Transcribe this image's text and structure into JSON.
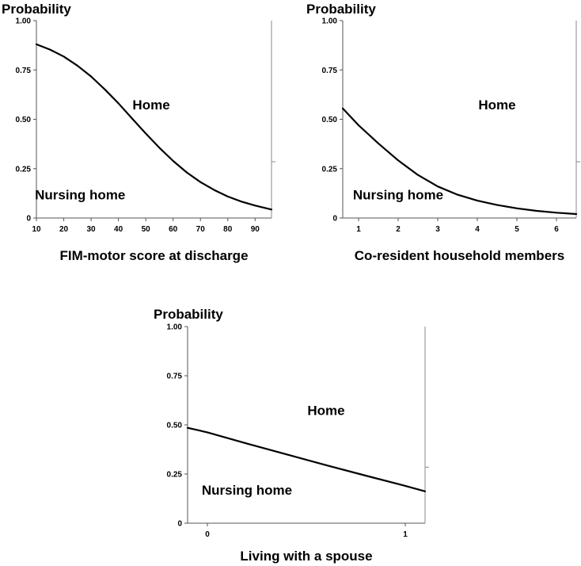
{
  "chart_data": [
    {
      "type": "line",
      "top_label": "Probability",
      "xlabel": "FIM-motor score at discharge",
      "xlim": [
        10,
        96
      ],
      "ylim": [
        0,
        1
      ],
      "x_ticks": [
        10,
        20,
        30,
        40,
        50,
        60,
        70,
        80,
        90
      ],
      "x_tick_labels": [
        "10",
        "20",
        "30",
        "40",
        "50",
        "60",
        "70",
        "80",
        "90"
      ],
      "y_ticks": [
        0,
        0.25,
        0.5,
        0.75,
        1.0
      ],
      "y_tick_labels": [
        "0",
        "0.25",
        "0.50",
        "0.75",
        "1.00"
      ],
      "right_axis_tick": 0.285,
      "region_labels": [
        {
          "text": "Home",
          "x": 52,
          "y": 0.55
        },
        {
          "text": "Nursing home",
          "x": 26,
          "y": 0.095
        }
      ],
      "series": [
        {
          "name": "Probability of nursing home",
          "x": [
            10,
            15,
            20,
            25,
            30,
            35,
            40,
            45,
            50,
            55,
            60,
            65,
            70,
            75,
            80,
            85,
            90,
            96
          ],
          "y": [
            0.88,
            0.853,
            0.818,
            0.772,
            0.717,
            0.652,
            0.581,
            0.504,
            0.428,
            0.356,
            0.289,
            0.231,
            0.182,
            0.142,
            0.109,
            0.083,
            0.063,
            0.043
          ]
        }
      ]
    },
    {
      "type": "line",
      "top_label": "Probability",
      "xlabel": "Co-resident household members",
      "xlim": [
        0.6,
        6.5
      ],
      "ylim": [
        0,
        1
      ],
      "x_ticks": [
        1,
        2,
        3,
        4,
        5,
        6
      ],
      "x_tick_labels": [
        "1",
        "2",
        "3",
        "4",
        "5",
        "6"
      ],
      "y_ticks": [
        0,
        0.25,
        0.5,
        0.75,
        1.0
      ],
      "y_tick_labels": [
        "0",
        "0.25",
        "0.50",
        "0.75",
        "1.00"
      ],
      "right_axis_tick": 0.285,
      "region_labels": [
        {
          "text": "Home",
          "x": 4.5,
          "y": 0.55
        },
        {
          "text": "Nursing home",
          "x": 2.0,
          "y": 0.095
        }
      ],
      "series": [
        {
          "name": "Probability of nursing home",
          "x": [
            0.6,
            1.0,
            1.5,
            2.0,
            2.5,
            3.0,
            3.5,
            4.0,
            4.5,
            5.0,
            5.5,
            6.0,
            6.5
          ],
          "y": [
            0.555,
            0.47,
            0.378,
            0.292,
            0.218,
            0.16,
            0.118,
            0.088,
            0.066,
            0.049,
            0.036,
            0.027,
            0.02
          ]
        }
      ]
    },
    {
      "type": "line",
      "top_label": "Probability",
      "xlabel": "Living with a spouse",
      "xlim": [
        -0.1,
        1.1
      ],
      "ylim": [
        0,
        1
      ],
      "x_ticks": [
        0,
        1
      ],
      "x_tick_labels": [
        "0",
        "1"
      ],
      "y_ticks": [
        0,
        0.25,
        0.5,
        0.75,
        1.0
      ],
      "y_tick_labels": [
        "0",
        "0.25",
        "0.50",
        "0.75",
        "1.00"
      ],
      "right_axis_tick": 0.285,
      "region_labels": [
        {
          "text": "Home",
          "x": 0.6,
          "y": 0.55
        },
        {
          "text": "Nursing home",
          "x": 0.2,
          "y": 0.145
        }
      ],
      "series": [
        {
          "name": "Probability of nursing home",
          "x": [
            -0.1,
            0.0,
            0.2,
            0.4,
            0.6,
            0.8,
            1.0,
            1.1
          ],
          "y": [
            0.485,
            0.462,
            0.405,
            0.35,
            0.295,
            0.242,
            0.19,
            0.162
          ]
        }
      ]
    }
  ]
}
